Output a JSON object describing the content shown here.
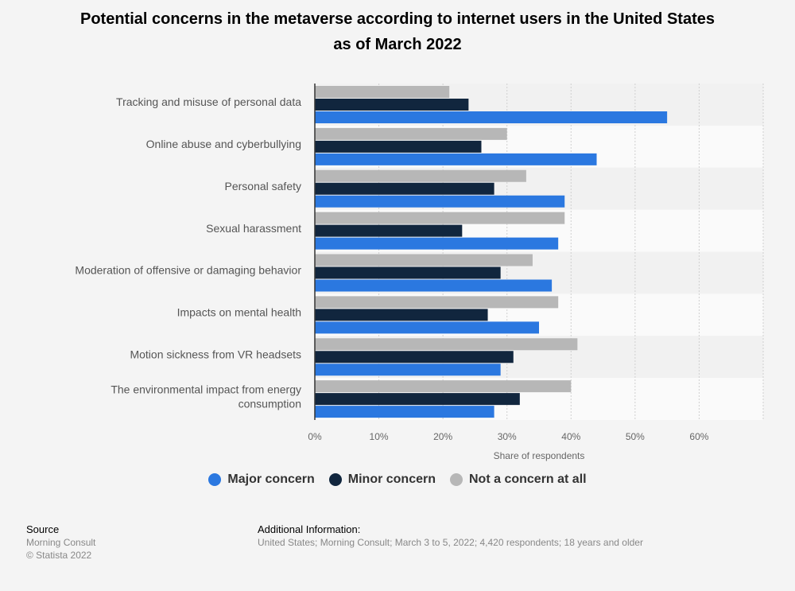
{
  "title_line1": "Potential concerns in the metaverse according to internet users in the United States",
  "title_line2": "as of March 2022",
  "chart_data": {
    "type": "bar",
    "orientation": "horizontal",
    "categories": [
      [
        "Tracking and misuse of personal data"
      ],
      [
        "Online abuse and cyberbullying"
      ],
      [
        "Personal safety"
      ],
      [
        "Sexual harassment"
      ],
      [
        "Moderation of offensive or damaging behavior"
      ],
      [
        "Impacts on mental health"
      ],
      [
        "Motion sickness from VR headsets"
      ],
      [
        "The environmental impact from energy",
        "consumption"
      ]
    ],
    "series": [
      {
        "name": "Not a concern at all",
        "color": "#b7b7b7",
        "values": [
          21,
          30,
          33,
          39,
          34,
          38,
          41,
          40
        ]
      },
      {
        "name": "Minor concern",
        "color": "#11263e",
        "values": [
          24,
          26,
          28,
          23,
          29,
          27,
          31,
          32
        ]
      },
      {
        "name": "Major concern",
        "color": "#2b78e0",
        "values": [
          55,
          44,
          39,
          38,
          37,
          35,
          29,
          28
        ]
      }
    ],
    "xlabel": "Share of respondents",
    "xticks": [
      "0%",
      "10%",
      "20%",
      "30%",
      "40%",
      "50%",
      "60%"
    ],
    "xlim": [
      0,
      70
    ],
    "grid": true,
    "legend_placement": "bottom"
  },
  "legend": [
    {
      "label": "Major concern",
      "color": "#2b78e0"
    },
    {
      "label": "Minor concern",
      "color": "#11263e"
    },
    {
      "label": "Not a concern at all",
      "color": "#b7b7b7"
    }
  ],
  "footer": {
    "source_heading": "Source",
    "source_line1": "Morning Consult",
    "source_line2": "© Statista 2022",
    "info_heading": "Additional Information:",
    "info_text": "United States; Morning Consult; March 3 to 5, 2022; 4,420 respondents; 18 years and older"
  }
}
